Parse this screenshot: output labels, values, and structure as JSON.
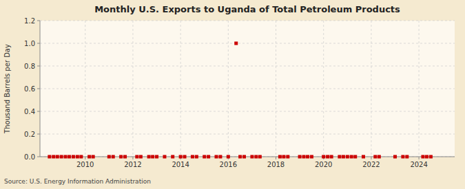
{
  "chart_data": {
    "type": "scatter",
    "title": "Monthly U.S. Exports to Uganda of Total Petroleum Products",
    "ylabel": "Thousand Barrels per Day",
    "source": "Source: U.S. Energy Information Administration",
    "color": "#cc0000",
    "marker": "square",
    "grid": true,
    "xlim": [
      2008.1,
      2025.5
    ],
    "xticks": [
      2010,
      2012,
      2014,
      2016,
      2018,
      2020,
      2022,
      2024
    ],
    "ylim": [
      0.0,
      1.2
    ],
    "yticks": [
      {
        "value": 0.0,
        "label": "0.0"
      },
      0.2,
      0.4,
      0.6,
      0.8,
      {
        "value": 1.0,
        "label": "1.0"
      },
      1.2
    ],
    "x": [
      2008.5,
      2008.67,
      2008.83,
      2009.0,
      2009.17,
      2009.33,
      2009.5,
      2009.67,
      2009.83,
      2010.17,
      2010.33,
      2011.0,
      2011.17,
      2011.5,
      2011.67,
      2012.17,
      2012.33,
      2012.67,
      2012.83,
      2013.0,
      2013.33,
      2013.67,
      2014.0,
      2014.17,
      2014.5,
      2014.67,
      2015.0,
      2015.17,
      2015.5,
      2015.67,
      2016.0,
      2016.5,
      2016.67,
      2017.0,
      2017.17,
      2017.33,
      2018.17,
      2018.33,
      2018.5,
      2019.0,
      2019.17,
      2019.33,
      2019.5,
      2020.0,
      2020.17,
      2020.33,
      2020.67,
      2020.83,
      2021.0,
      2021.17,
      2021.33,
      2021.67,
      2022.17,
      2022.33,
      2023.0,
      2023.33,
      2023.5,
      2024.17,
      2024.33,
      2024.5,
      2016.33
    ],
    "values": [
      0.0,
      0.0,
      0.0,
      0.0,
      0.0,
      0.0,
      0.0,
      0.0,
      0.0,
      0.0,
      0.0,
      0.0,
      0.0,
      0.0,
      0.0,
      0.0,
      0.0,
      0.0,
      0.0,
      0.0,
      0.0,
      0.0,
      0.0,
      0.0,
      0.0,
      0.0,
      0.0,
      0.0,
      0.0,
      0.0,
      0.0,
      0.0,
      0.0,
      0.0,
      0.0,
      0.0,
      0.0,
      0.0,
      0.0,
      0.0,
      0.0,
      0.0,
      0.0,
      0.0,
      0.0,
      0.0,
      0.0,
      0.0,
      0.0,
      0.0,
      0.0,
      0.0,
      0.0,
      0.0,
      0.0,
      0.0,
      0.0,
      0.0,
      0.0,
      0.0,
      1.0
    ]
  }
}
